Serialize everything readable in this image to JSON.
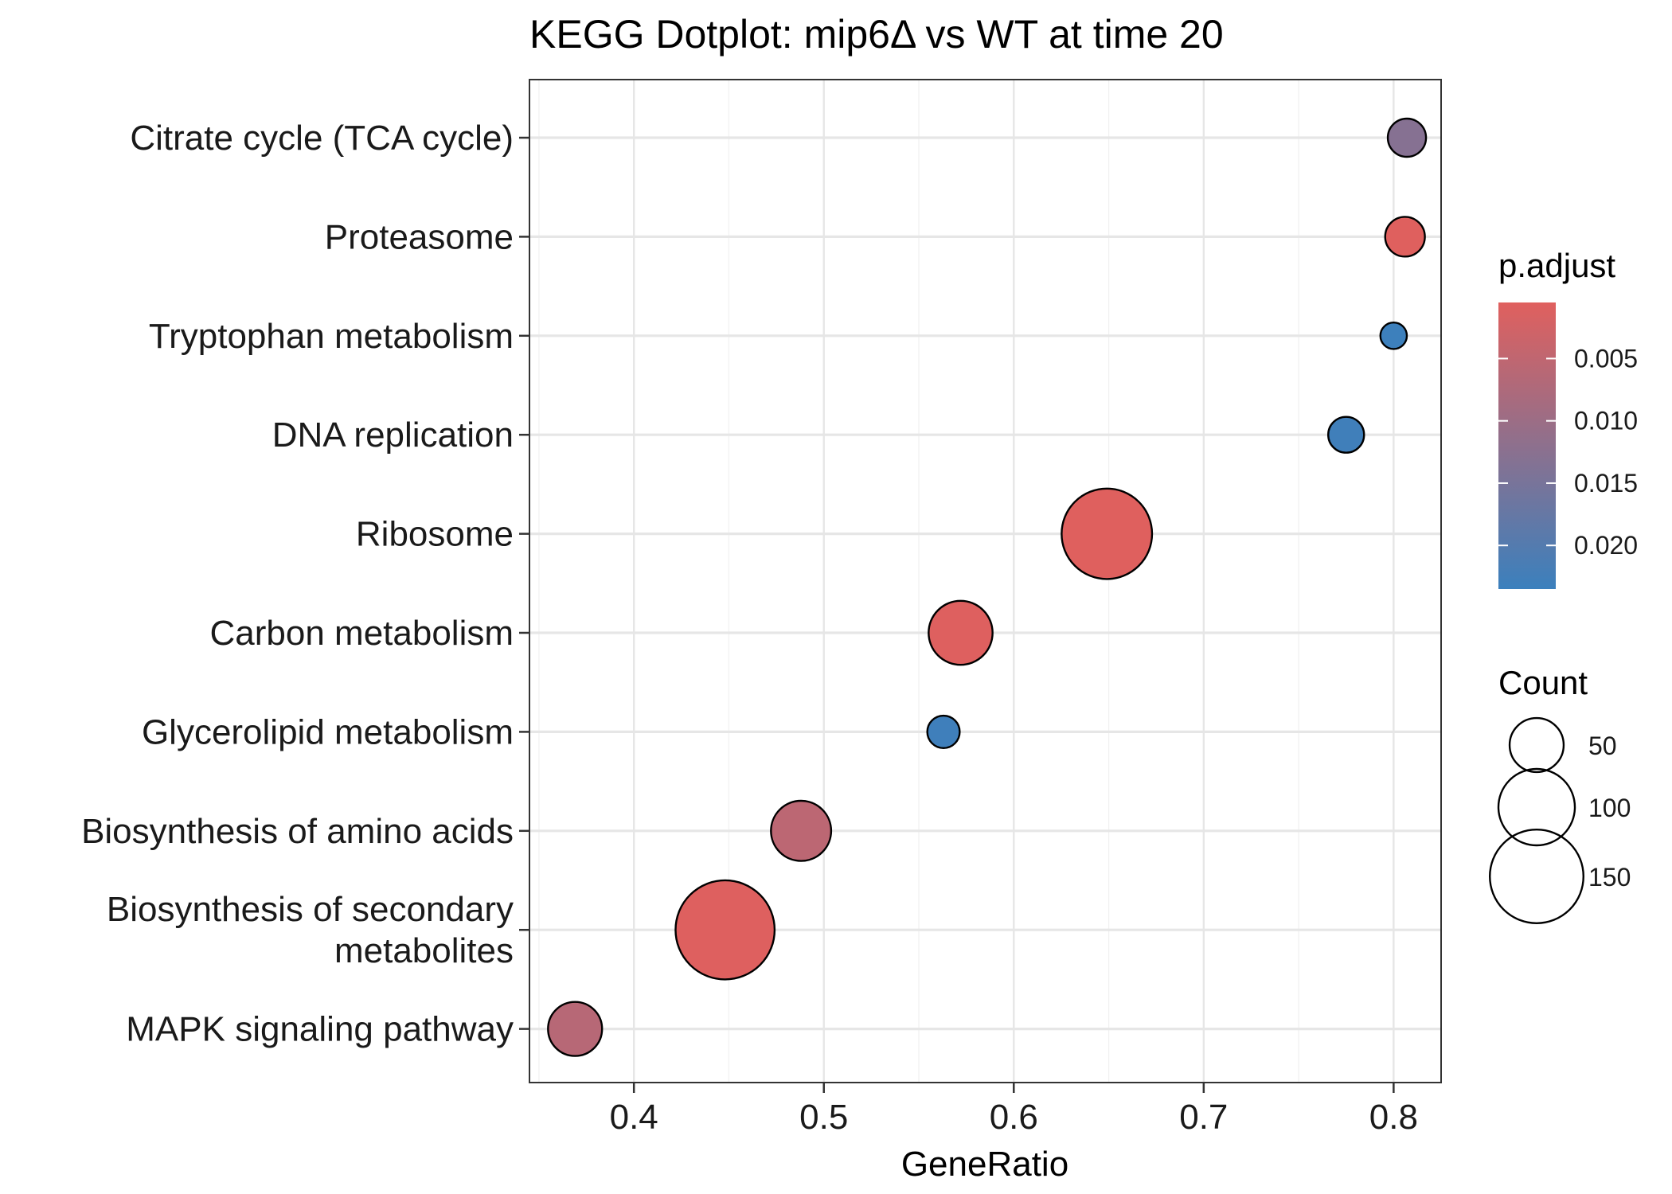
{
  "chart_data": {
    "type": "scatter",
    "title": "KEGG Dotplot: mip6Δ vs WT at time 20",
    "xlabel": "GeneRatio",
    "ylabel": "",
    "xlim": [
      0.345,
      0.825
    ],
    "xticks": [
      0.4,
      0.5,
      0.6,
      0.7,
      0.8
    ],
    "grid": true,
    "categories": [
      "Citrate cycle (TCA cycle)",
      "Proteasome",
      "Tryptophan metabolism",
      "DNA replication",
      "Ribosome",
      "Carbon metabolism",
      "Glycerolipid metabolism",
      "Biosynthesis of amino acids",
      "Biosynthesis of secondary metabolites",
      "MAPK signaling pathway"
    ],
    "category_lines": [
      [
        "Citrate cycle (TCA cycle)"
      ],
      [
        "Proteasome"
      ],
      [
        "Tryptophan metabolism"
      ],
      [
        "DNA replication"
      ],
      [
        "Ribosome"
      ],
      [
        "Carbon metabolism"
      ],
      [
        "Glycerolipid metabolism"
      ],
      [
        "Biosynthesis of amino acids"
      ],
      [
        "Biosynthesis of secondary",
        "metabolites"
      ],
      [
        "MAPK signaling pathway"
      ]
    ],
    "points": [
      {
        "term": "Citrate cycle (TCA cycle)",
        "gene_ratio": 0.807,
        "count": 25,
        "p_adjust": 0.013
      },
      {
        "term": "Proteasome",
        "gene_ratio": 0.806,
        "count": 27,
        "p_adjust": 0.0006
      },
      {
        "term": "Tryptophan metabolism",
        "gene_ratio": 0.8,
        "count": 12,
        "p_adjust": 0.0232
      },
      {
        "term": "DNA replication",
        "gene_ratio": 0.775,
        "count": 22,
        "p_adjust": 0.0228
      },
      {
        "term": "Ribosome",
        "gene_ratio": 0.649,
        "count": 140,
        "p_adjust": 0.0006
      },
      {
        "term": "Carbon metabolism",
        "gene_ratio": 0.572,
        "count": 70,
        "p_adjust": 0.0008
      },
      {
        "term": "Glycerolipid metabolism",
        "gene_ratio": 0.563,
        "count": 18,
        "p_adjust": 0.023
      },
      {
        "term": "Biosynthesis of amino acids",
        "gene_ratio": 0.488,
        "count": 62,
        "p_adjust": 0.0055
      },
      {
        "term": "Biosynthesis of secondary metabolites",
        "gene_ratio": 0.448,
        "count": 168,
        "p_adjust": 0.0008
      },
      {
        "term": "MAPK signaling pathway",
        "gene_ratio": 0.369,
        "count": 50,
        "p_adjust": 0.0062
      }
    ],
    "color_legend": {
      "title": "p.adjust",
      "ticks": [
        0.005,
        0.01,
        0.015,
        0.02
      ],
      "tick_labels": [
        "0.005",
        "0.010",
        "0.015",
        "0.020"
      ],
      "range": [
        0.0005,
        0.0235
      ],
      "low_color": "#E0605E",
      "high_color": "#3B80BD"
    },
    "size_legend": {
      "title": "Count",
      "values": [
        50,
        100,
        150
      ],
      "labels": [
        "50",
        "100",
        "150"
      ]
    },
    "legend_position": "right"
  }
}
